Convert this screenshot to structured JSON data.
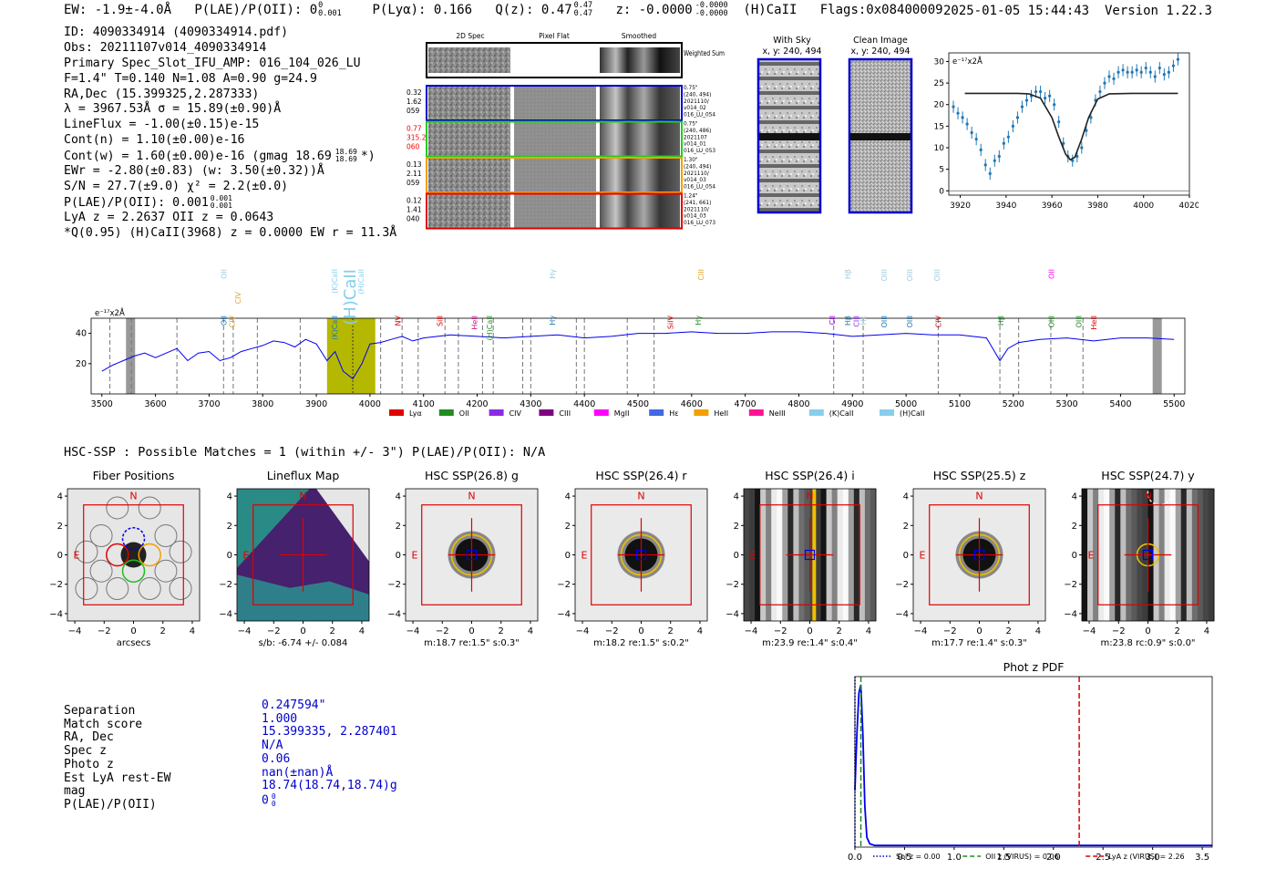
{
  "topbar": {
    "ew": "EW: -1.9±-4.0Å",
    "plae": "P(LAE)/P(OII): 0",
    "plae_sup": "0",
    "plae_sub": "0.001",
    "plya": "P(Lyα): 0.166",
    "qz": "Q(z): 0.47",
    "qz_sup": "0.47",
    "qz_sub": "0.47",
    "z": "z: -0.0000",
    "z_sup": "-0.0000",
    "z_sub": "-0.0000",
    "line": "(H)CaII",
    "flags": "Flags:0x08400009"
  },
  "topright": {
    "timestamp": "2025-01-05 15:44:43",
    "version": "Version 1.22.3"
  },
  "info": {
    "id": "ID: 4090334914 (4090334914.pdf)",
    "obs": "Obs: 20211107v014_4090334914",
    "primary": "Primary Spec_Slot_IFU_AMP: 016_104_026_LU",
    "fparams": "F=1.4\"  T=0.140  N=1.08  A=0.90  g=24.9",
    "radec": "RA,Dec (15.399325,2.287333)",
    "lambda": "λ = 3967.53Å  σ = 15.89(±0.90)Å",
    "lineflux": "LineFlux = -1.00(±0.15)e-15",
    "contn": "Cont(n) = 1.10(±0.00)e-16",
    "contw": "Cont(w) = 1.60(±0.00)e-16 (gmag 18.69",
    "contw_sup": "18.69",
    "contw_sub": "18.69",
    "contw_end": "*)",
    "ewr": "EWr = -2.80(±0.83) (w: 3.50(±0.32))Å",
    "sn": "S/N = 27.7(±9.0)  χ² = 2.2(±0.0)",
    "plae": "P(LAE)/P(OII): 0.001",
    "plae_sup": "0.001",
    "plae_sub": "0.001",
    "lyaz": "LyA z = 2.2637  OII z = 0.0643",
    "qline": "*Q(0.95) (H)CaII(3968) z = 0.0000  EW r = 11.3Å"
  },
  "cutouts": {
    "col_2d": "2D Spec",
    "col_flat": "Pixel Flat",
    "col_smooth": "Smoothed",
    "weighted": "Weighted Sum",
    "rows": [
      {
        "left": [
          "0.32",
          "1.62",
          "059"
        ],
        "right": [
          "0.75\"",
          "(240, 494)",
          "2021110/",
          "v014_02",
          "016_LU_054"
        ],
        "color": "#0000cc",
        "leftcolor": "#000"
      },
      {
        "left": [
          "0.77",
          "315.2",
          "060"
        ],
        "right": [
          "0.75\"",
          "(240, 486)",
          "2021107",
          "v014_01",
          "016_LU_053"
        ],
        "color": "#22cc22",
        "leftcolor": "#e00"
      },
      {
        "left": [
          "0.13",
          "2.11",
          "059"
        ],
        "right": [
          "1.30\"",
          "(240, 494)",
          "2021110/",
          "v014_03",
          "016_LU_054"
        ],
        "color": "#f0a000",
        "leftcolor": "#000"
      },
      {
        "left": [
          "0.12",
          "1.41",
          "040"
        ],
        "right": [
          "1.24\"",
          "(241, 661)",
          "2021110/",
          "v014_03",
          "016_LU_073"
        ],
        "color": "#e00000",
        "leftcolor": "#000"
      }
    ]
  },
  "sky": {
    "with_sky": "With Sky",
    "with_sky_xy": "x, y: 240, 494",
    "clean": "Clean Image",
    "clean_xy": "x, y: 240, 494"
  },
  "fit_chart": {
    "unit": "e⁻¹⁷x2Å"
  },
  "spectrum": {
    "unit": "e⁻¹⁷x2Å",
    "lines": [
      {
        "label": "OII",
        "w": 3727,
        "color": "#1f77b4",
        "row": 2
      },
      {
        "label": "OII",
        "w": 3727,
        "color": "#9ecae1",
        "row": 0
      },
      {
        "label": "CIV",
        "w": 3743,
        "color": "#e8a020",
        "row": 2
      },
      {
        "label": "CIV",
        "w": 3754,
        "color": "#e8a020",
        "row": 1
      },
      {
        "label": "(K)CaII",
        "w": 3934,
        "color": "#1f77b4",
        "row": 2
      },
      {
        "label": "(K)CaII",
        "w": 3934,
        "color": "#87ceeb",
        "row": 0
      },
      {
        "label": "(H)CaII",
        "w": 3968,
        "color": "#87ceeb",
        "row": 0
      },
      {
        "label": "(H)CaII",
        "w": 3968,
        "color": "#87ceeb",
        "row": 0
      },
      {
        "label": "NV",
        "w": 4052,
        "color": "#e00000",
        "row": 2
      },
      {
        "label": "SiII",
        "w": 4130,
        "color": "#e00000",
        "row": 2
      },
      {
        "label": "HeII",
        "w": 4195,
        "color": "#c71585",
        "row": 2
      },
      {
        "label": "(H)CaII",
        "w": 4223,
        "color": "#228b22",
        "row": 2
      },
      {
        "label": "Hγ",
        "w": 4340,
        "color": "#1f77b4",
        "row": 2
      },
      {
        "label": "Hγ",
        "w": 4340,
        "color": "#87ceeb",
        "row": 0
      },
      {
        "label": "SiIV",
        "w": 4560,
        "color": "#e00000",
        "row": 2
      },
      {
        "label": "Hγ",
        "w": 4612,
        "color": "#228b22",
        "row": 2
      },
      {
        "label": "CIII",
        "w": 4617,
        "color": "#e8a020",
        "row": 0
      },
      {
        "label": "CII",
        "w": 4862,
        "color": "#9400d3",
        "row": 2
      },
      {
        "label": "Hβ",
        "w": 4891,
        "color": "#1f77b4",
        "row": 2
      },
      {
        "label": "Hβ",
        "w": 4891,
        "color": "#9ecae1",
        "row": 0
      },
      {
        "label": "CIII",
        "w": 4907,
        "color": "#8a2be2",
        "row": 2
      },
      {
        "label": "Hε",
        "w": 4920,
        "color": "#9ecae1",
        "row": 2
      },
      {
        "label": "OIII",
        "w": 4959,
        "color": "#1f77b4",
        "row": 2
      },
      {
        "label": "OIII",
        "w": 4959,
        "color": "#9ecae1",
        "row": 0
      },
      {
        "label": "OIII",
        "w": 5007,
        "color": "#1f77b4",
        "row": 2
      },
      {
        "label": "OIII",
        "w": 5007,
        "color": "#9ecae1",
        "row": 0
      },
      {
        "label": "CIV",
        "w": 5060,
        "color": "#e00000",
        "row": 2
      },
      {
        "label": "OIII",
        "w": 5058,
        "color": "#9ecae1",
        "row": 0
      },
      {
        "label": "Hβ",
        "w": 5177,
        "color": "#228b22",
        "row": 2
      },
      {
        "label": "OIII",
        "w": 5271,
        "color": "#228b22",
        "row": 2
      },
      {
        "label": "OII",
        "w": 5271,
        "color": "#ff00ff",
        "row": 0
      },
      {
        "label": "OIII",
        "w": 5322,
        "color": "#228b22",
        "row": 2
      },
      {
        "label": "HeII",
        "w": 5350,
        "color": "#e00000",
        "row": 2
      }
    ],
    "legend": [
      {
        "label": "Lyα",
        "color": "#e00000"
      },
      {
        "label": "OII",
        "color": "#228b22"
      },
      {
        "label": "CIV",
        "color": "#8a2be2"
      },
      {
        "label": "CIII",
        "color": "#800080"
      },
      {
        "label": "MgII",
        "color": "#ff00ff"
      },
      {
        "label": "Hε",
        "color": "#4169e1"
      },
      {
        "label": "HeII",
        "color": "#f0a000"
      },
      {
        "label": "NeIII",
        "color": "#ff1493"
      },
      {
        "label": "(K)CaII",
        "color": "#87ceeb"
      },
      {
        "label": "(H)CaII",
        "color": "#87ceeb"
      }
    ]
  },
  "hsc": {
    "header": "HSC-SSP : Possible Matches = 1 (within +/- 3\")  P(LAE)/P(OII): N/A",
    "panels": [
      {
        "title": "Fiber Positions",
        "caption": "arcsecs",
        "kind": "fiber"
      },
      {
        "title": "Lineflux Map",
        "caption": "s/b: -6.74 +/- 0.084",
        "kind": "lineflux"
      },
      {
        "title": "HSC SSP(26.8) g",
        "caption": "m:18.7  re:1.5\"  s:0.3\"",
        "kind": "star"
      },
      {
        "title": "HSC SSP(26.4) r",
        "caption": "m:18.2  re:1.5\"  s:0.2\"",
        "kind": "star"
      },
      {
        "title": "HSC SSP(26.4) i",
        "caption": "m:23.9  re:1.4\"  s:0.4\"",
        "kind": "streak"
      },
      {
        "title": "HSC SSP(25.5) z",
        "caption": "m:17.7  re:1.4\"  s:0.3\"",
        "kind": "star"
      },
      {
        "title": "HSC SSP(24.7) y",
        "caption": "m:23.8  rc:0.9\"  s:0.0\"",
        "kind": "streak2"
      }
    ],
    "north": "N",
    "east": "E"
  },
  "match": {
    "labels": [
      "Separation",
      "Match score",
      "RA, Dec",
      "Spec z",
      "Photo z",
      "Est LyA rest-EW",
      "mag",
      "P(LAE)/P(OII)"
    ],
    "values": [
      "0.247594\"",
      "1.000",
      "15.399335, 2.287401",
      "N/A",
      "0.06",
      "nan(±nan)Å",
      "18.74(18.74,18.74)g",
      "0"
    ],
    "plae_sup": "0",
    "plae_sub": "0"
  },
  "chart_data": [
    {
      "type": "scatter",
      "title": "",
      "xlabel": "",
      "ylabel": "e-17 x2Å",
      "xlim": [
        3915,
        4020
      ],
      "ylim": [
        -1,
        32
      ],
      "xticks": [
        3920,
        3940,
        3960,
        3980,
        4000,
        4020
      ],
      "yticks": [
        0,
        5,
        10,
        15,
        20,
        25,
        30
      ],
      "x": [
        3917,
        3919,
        3921,
        3923,
        3925,
        3927,
        3929,
        3931,
        3933,
        3935,
        3937,
        3939,
        3941,
        3943,
        3945,
        3947,
        3949,
        3951,
        3953,
        3955,
        3957,
        3959,
        3961,
        3963,
        3965,
        3967,
        3969,
        3971,
        3973,
        3975,
        3977,
        3979,
        3981,
        3983,
        3985,
        3987,
        3989,
        3991,
        3993,
        3995,
        3997,
        3999,
        4001,
        4003,
        4005,
        4007,
        4009,
        4011,
        4013,
        4015
      ],
      "y": [
        19.5,
        18,
        17,
        15.5,
        13.5,
        12,
        9.5,
        6,
        4,
        7,
        8,
        11,
        12.5,
        15,
        17,
        19.5,
        21,
        22,
        23,
        23,
        21.5,
        22,
        20,
        16,
        11,
        8,
        7,
        8,
        10,
        14,
        17,
        21,
        23,
        25,
        26.5,
        26,
        27.5,
        28,
        27.5,
        27.5,
        28,
        27.5,
        28.5,
        27.5,
        26.5,
        28.5,
        27,
        27.5,
        29,
        30.5
      ],
      "fit_series": {
        "name": "gaussian fit",
        "x": [
          3922,
          3945,
          3950,
          3955,
          3960,
          3963,
          3966,
          3968,
          3970,
          3973,
          3976,
          3980,
          3985,
          3995,
          4015
        ],
        "y": [
          22.6,
          22.6,
          22.5,
          21.5,
          17,
          12.5,
          8.5,
          7.2,
          7.8,
          12,
          17,
          21.3,
          22.5,
          22.6,
          22.6
        ]
      }
    },
    {
      "type": "line",
      "title": "",
      "xlabel": "",
      "ylabel": "e-17 x2Å",
      "xlim": [
        3480,
        5520
      ],
      "ylim": [
        0,
        50
      ],
      "xticks": [
        3500,
        3600,
        3700,
        3800,
        3900,
        4000,
        4100,
        4200,
        4300,
        4400,
        4500,
        4600,
        4700,
        4800,
        4900,
        5000,
        5100,
        5200,
        5300,
        5400,
        5500
      ],
      "yticks": [
        20,
        40
      ],
      "highlight_band": [
        3920,
        4010
      ],
      "dashed_lines": [
        3515,
        3555,
        3640,
        3727,
        3745,
        3790,
        3870,
        4020,
        4060,
        4090,
        4140,
        4165,
        4210,
        4230,
        4285,
        4300,
        4385,
        4400,
        4480,
        4530,
        4865,
        4920,
        5060,
        5175,
        5210,
        5270,
        5330
      ],
      "x": [
        3500,
        3520,
        3540,
        3560,
        3580,
        3600,
        3620,
        3640,
        3660,
        3680,
        3700,
        3720,
        3740,
        3760,
        3780,
        3800,
        3820,
        3840,
        3860,
        3880,
        3900,
        3920,
        3935,
        3950,
        3968,
        3985,
        4000,
        4020,
        4040,
        4060,
        4080,
        4100,
        4150,
        4200,
        4250,
        4300,
        4350,
        4400,
        4450,
        4500,
        4550,
        4600,
        4650,
        4700,
        4750,
        4800,
        4850,
        4900,
        4950,
        5000,
        5050,
        5100,
        5150,
        5175,
        5190,
        5210,
        5250,
        5300,
        5350,
        5400,
        5450,
        5500
      ],
      "y": [
        15,
        19,
        22,
        25,
        27,
        24,
        27,
        30,
        22,
        27,
        28,
        22,
        24,
        28,
        30,
        32,
        35,
        34,
        31,
        36,
        33,
        22,
        28,
        15,
        10,
        20,
        33,
        34,
        36,
        38,
        35,
        37,
        39,
        38,
        37,
        38,
        39,
        37,
        38,
        40,
        40,
        41,
        40,
        40,
        41,
        41,
        40,
        38,
        39,
        40,
        39,
        39,
        37,
        22,
        30,
        34,
        36,
        37,
        35,
        37,
        37,
        36
      ]
    },
    {
      "type": "line",
      "title": "Phot z PDF",
      "xlabel": "",
      "ylabel": "",
      "xlim": [
        0,
        3.6
      ],
      "ylim": [
        0,
        1.05
      ],
      "xticks": [
        0.0,
        0.5,
        1.0,
        1.5,
        2.0,
        2.5,
        3.0,
        3.5
      ],
      "x": [
        0.0,
        0.02,
        0.04,
        0.06,
        0.08,
        0.1,
        0.12,
        0.15,
        0.2,
        0.3,
        3.6
      ],
      "y": [
        0.35,
        0.7,
        0.95,
        1.0,
        0.7,
        0.25,
        0.06,
        0.02,
        0.01,
        0.01,
        0.01
      ],
      "vlines": [
        {
          "name": "Sol z = 0.00",
          "x": 0.0,
          "color": "#0000cc",
          "style": "dotted"
        },
        {
          "name": "OII z (VIRUS) = 0.06",
          "x": 0.06,
          "color": "#228b22",
          "style": "dashed"
        },
        {
          "name": "LyA z (VIRUS) = 2.26",
          "x": 2.26,
          "color": "#e00000",
          "style": "dashed"
        }
      ]
    }
  ]
}
